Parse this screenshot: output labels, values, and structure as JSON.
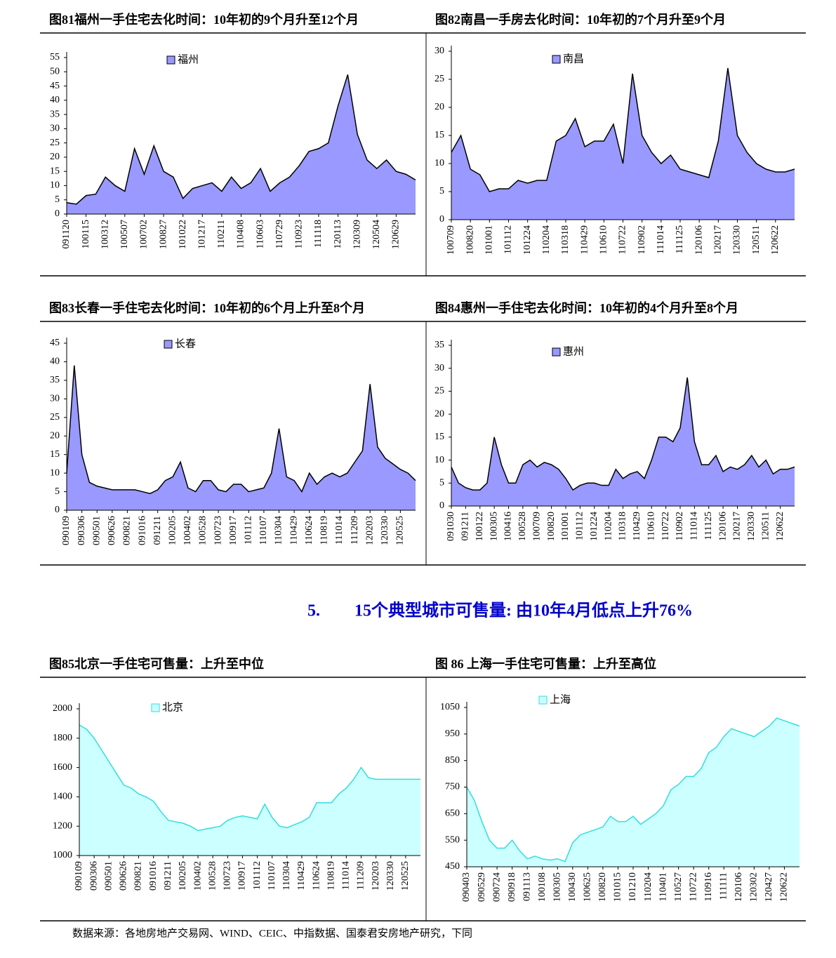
{
  "heading": {
    "number": "5.",
    "text": "15个典型城市可售量: 由10年4月低点上升76%"
  },
  "source": "数据来源：各地房地产交易网、WIND、CEIC、中指数据、国泰君安房地产研究，下同",
  "chart_data": [
    {
      "type": "area",
      "title": "图81福州一手住宅去化时间：10年初的9个月升至12个月",
      "categories": [
        "091120",
        null,
        "100115",
        null,
        "100312",
        null,
        "100507",
        null,
        "100702",
        null,
        "100827",
        null,
        "101022",
        null,
        "101217",
        null,
        "110211",
        null,
        "110408",
        null,
        "110603",
        null,
        "110729",
        null,
        "110923",
        null,
        "111118",
        null,
        "120113",
        null,
        "120309",
        null,
        "120504",
        null,
        "120629",
        null,
        null
      ],
      "series": [
        {
          "name": "福州",
          "color": "#9999ff",
          "edge_color": "#000000",
          "values": [
            4,
            3.5,
            6.5,
            7,
            13,
            10,
            8,
            23,
            14,
            24,
            15,
            13,
            5.5,
            9,
            10,
            11,
            8,
            13,
            9,
            11,
            16,
            8,
            11,
            13,
            17,
            22,
            23,
            25,
            38,
            49,
            28,
            19,
            16,
            19,
            15,
            14,
            12
          ]
        }
      ],
      "ylim": [
        0,
        55
      ],
      "yticks": [
        0,
        5,
        10,
        15,
        20,
        25,
        30,
        35,
        40,
        45,
        50,
        55
      ]
    },
    {
      "type": "area",
      "title": "图82南昌一手房去化时间：10年初的7个月升至9个月",
      "categories": [
        "100709",
        null,
        "100820",
        null,
        "101001",
        null,
        "101112",
        null,
        "101224",
        null,
        "110204",
        null,
        "110318",
        null,
        "110429",
        null,
        "110610",
        null,
        "110722",
        null,
        "110902",
        null,
        "111014",
        null,
        "111125",
        null,
        "120106",
        null,
        "120217",
        null,
        "120330",
        null,
        "120511",
        null,
        "120622",
        null,
        null
      ],
      "series": [
        {
          "name": "南昌",
          "color": "#9999ff",
          "edge_color": "#000000",
          "values": [
            12,
            15,
            9,
            8,
            5,
            5.5,
            5.5,
            7,
            6.5,
            7,
            7,
            14,
            15,
            18,
            13,
            14,
            14,
            17,
            10,
            26,
            15,
            12,
            10,
            11.5,
            9,
            8.5,
            8,
            7.5,
            14,
            27,
            15,
            12,
            10,
            9,
            8.5,
            8.5,
            9
          ]
        }
      ],
      "ylim": [
        0,
        30
      ],
      "yticks": [
        0,
        5,
        10,
        15,
        20,
        25,
        30
      ]
    },
    {
      "type": "area",
      "title": "图83长春一手住宅去化时间：10年初的6个月上升至8个月",
      "categories": [
        "090109",
        null,
        "090306",
        null,
        "090501",
        null,
        "090626",
        null,
        "090821",
        null,
        "091016",
        null,
        "091211",
        null,
        "100205",
        null,
        "100402",
        null,
        "100528",
        null,
        "100723",
        null,
        "100917",
        null,
        "101112",
        null,
        "110107",
        null,
        "110304",
        null,
        "110429",
        null,
        "110624",
        null,
        "110819",
        null,
        "111014",
        null,
        "111209",
        null,
        "120203",
        null,
        "120330",
        null,
        "120525",
        null,
        null
      ],
      "series": [
        {
          "name": "长春",
          "color": "#9999ff",
          "edge_color": "#000000",
          "values": [
            10,
            39,
            15,
            7.5,
            6.5,
            6,
            5.5,
            5.5,
            5.5,
            5.5,
            5,
            4.5,
            5.5,
            8,
            9,
            13,
            6,
            5,
            8,
            8,
            5.5,
            5,
            7,
            7,
            5,
            5.5,
            6,
            10,
            22,
            9,
            8,
            5,
            10,
            7,
            9,
            10,
            9,
            10,
            13,
            16,
            34,
            17,
            14,
            12.5,
            11,
            10,
            8
          ]
        }
      ],
      "ylim": [
        0,
        45
      ],
      "yticks": [
        0,
        5,
        10,
        15,
        20,
        25,
        30,
        35,
        40,
        45
      ]
    },
    {
      "type": "area",
      "title": "图84惠州一手住宅去化时间：10年初的4个月升至8个月",
      "categories": [
        "091030",
        null,
        "091211",
        null,
        "100122",
        null,
        "100305",
        null,
        "100416",
        null,
        "100528",
        null,
        "100709",
        null,
        "100820",
        null,
        "101001",
        null,
        "101112",
        null,
        "101224",
        null,
        "110204",
        null,
        "110318",
        null,
        "110429",
        null,
        "110610",
        null,
        "110722",
        null,
        "110902",
        null,
        "111014",
        null,
        "111125",
        null,
        "120106",
        null,
        "120217",
        null,
        "120330",
        null,
        "120511",
        null,
        "120622",
        null,
        null
      ],
      "series": [
        {
          "name": "惠州",
          "color": "#9999ff",
          "edge_color": "#000000",
          "values": [
            8.5,
            5,
            4,
            3.5,
            3.5,
            5,
            15,
            9,
            5,
            5,
            9,
            10,
            8.5,
            9.5,
            9,
            8,
            6,
            3.5,
            4.5,
            5,
            5,
            4.5,
            4.5,
            8,
            6,
            7,
            7.5,
            6,
            10,
            15,
            15,
            14,
            17,
            28,
            14,
            9,
            9,
            11,
            7.5,
            8.5,
            8,
            9,
            11,
            8.5,
            10,
            7,
            8,
            8,
            8.5
          ]
        }
      ],
      "ylim": [
        0,
        35
      ],
      "yticks": [
        0,
        5,
        10,
        15,
        20,
        25,
        30,
        35
      ]
    },
    {
      "type": "area",
      "title": "图85北京一手住宅可售量：上升至中位",
      "categories": [
        "090109",
        null,
        "090306",
        null,
        "090501",
        null,
        "090626",
        null,
        "090821",
        null,
        "091016",
        null,
        "091211",
        null,
        "100205",
        null,
        "100402",
        null,
        "100528",
        null,
        "100723",
        null,
        "100917",
        null,
        "101112",
        null,
        "110107",
        null,
        "110304",
        null,
        "110429",
        null,
        "110624",
        null,
        "110819",
        null,
        "111014",
        null,
        "111209",
        null,
        "120203",
        null,
        "120330",
        null,
        "120525",
        null,
        null
      ],
      "series": [
        {
          "name": "北京",
          "color": "#ccffff",
          "edge_color": "#33dddd",
          "values": [
            1890,
            1860,
            1800,
            1720,
            1640,
            1560,
            1480,
            1460,
            1420,
            1400,
            1370,
            1300,
            1240,
            1230,
            1220,
            1200,
            1170,
            1180,
            1190,
            1200,
            1240,
            1260,
            1270,
            1260,
            1250,
            1350,
            1260,
            1200,
            1190,
            1210,
            1230,
            1260,
            1360,
            1360,
            1360,
            1420,
            1460,
            1520,
            1600,
            1530,
            1520,
            1520,
            1520,
            1520,
            1520,
            1520,
            1520
          ]
        }
      ],
      "ylim": [
        1000,
        2000
      ],
      "yticks": [
        1000,
        1200,
        1400,
        1600,
        1800,
        2000
      ]
    },
    {
      "type": "area",
      "title": "图 86 上海一手住宅可售量：上升至高位",
      "categories": [
        "090403",
        null,
        "090529",
        null,
        "090724",
        null,
        "090918",
        null,
        "091113",
        null,
        "100108",
        null,
        "100305",
        null,
        "100430",
        null,
        "100625",
        null,
        "100820",
        null,
        "101015",
        null,
        "101210",
        null,
        "110204",
        null,
        "110401",
        null,
        "110527",
        null,
        "110722",
        null,
        "110916",
        null,
        "111111",
        null,
        "120106",
        null,
        "120302",
        null,
        "120427",
        null,
        "120622",
        null,
        null
      ],
      "series": [
        {
          "name": "上海",
          "color": "#ccffff",
          "edge_color": "#33dddd",
          "values": [
            750,
            700,
            620,
            550,
            520,
            520,
            550,
            510,
            480,
            490,
            480,
            475,
            480,
            470,
            540,
            570,
            580,
            590,
            600,
            640,
            620,
            620,
            640,
            610,
            630,
            650,
            680,
            740,
            760,
            790,
            790,
            820,
            880,
            900,
            940,
            970,
            960,
            950,
            940,
            960,
            980,
            1010,
            1000,
            990,
            980
          ]
        }
      ],
      "ylim": [
        450,
        1050
      ],
      "yticks": [
        450,
        550,
        650,
        750,
        850,
        950,
        1050
      ]
    }
  ]
}
